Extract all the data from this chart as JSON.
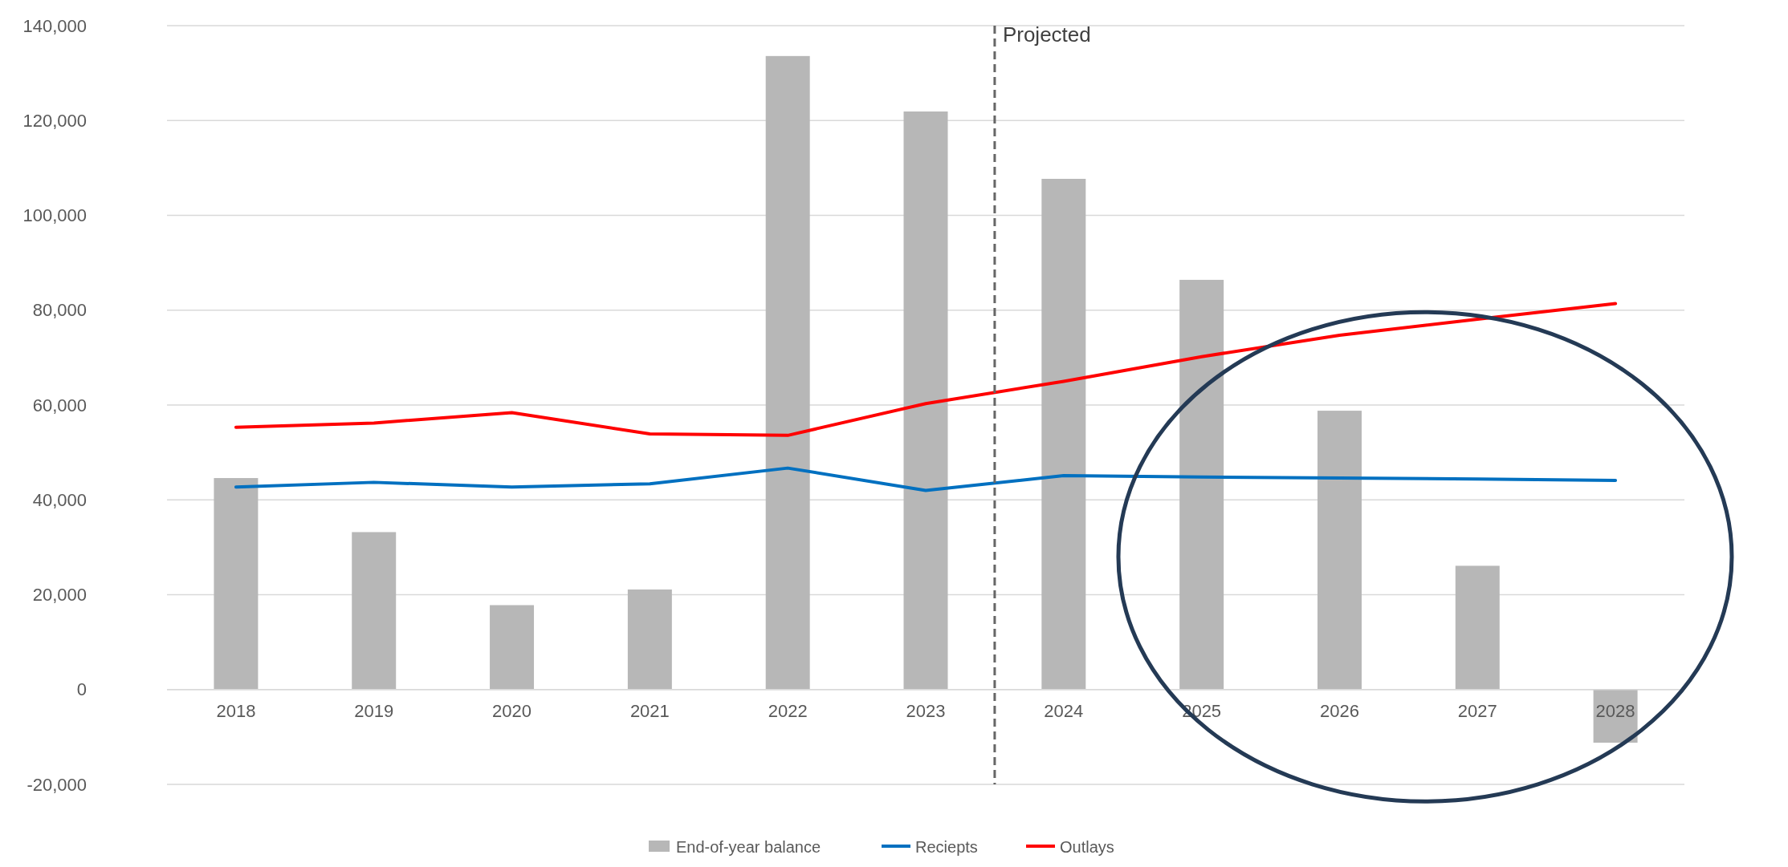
{
  "chart_data": {
    "type": "bar",
    "x": [
      2018,
      2019,
      2020,
      2021,
      2022,
      2023,
      2024,
      2025,
      2026,
      2027,
      2028
    ],
    "xlim": [
      2017.5,
      2028.5
    ],
    "xticks": [
      2018,
      2019,
      2020,
      2021,
      2022,
      2023,
      2024,
      2025,
      2026,
      2027,
      2028
    ],
    "ylim": [
      -20000,
      140000
    ],
    "yticks": [
      {
        "value": -20000,
        "label": "-20,000"
      },
      {
        "value": 0,
        "label": "0"
      },
      {
        "value": 20000,
        "label": "20,000"
      },
      {
        "value": 40000,
        "label": "40,000"
      },
      {
        "value": 60000,
        "label": "60,000"
      },
      {
        "value": 80000,
        "label": "80,000"
      },
      {
        "value": 100000,
        "label": "100,000"
      },
      {
        "value": 120000,
        "label": "120,000"
      },
      {
        "value": 140000,
        "label": "140,000"
      }
    ],
    "grid": "y",
    "legend": "bottom",
    "marker": "none",
    "line_style": "solid",
    "ref_lines": [
      {
        "axis": "x",
        "value": 2023.5,
        "label": "Projected",
        "color": "#666666",
        "line_style": "dashed"
      }
    ],
    "series": [
      {
        "name": "End-of-year balance",
        "color": "#b7b7b7",
        "values": [
          44600,
          33200,
          17800,
          21100,
          133600,
          121900,
          107700,
          86400,
          58800,
          26100,
          -11200
        ]
      },
      {
        "name": "Reciepts",
        "type": "line",
        "color": "#0070c0",
        "values": [
          42700,
          43700,
          42700,
          43400,
          46700,
          42000,
          45100,
          44800,
          44600,
          44400,
          44100
        ]
      },
      {
        "name": "Outlays",
        "type": "line",
        "color": "#ff0000",
        "values": [
          55300,
          56200,
          58400,
          53900,
          53600,
          60300,
          65000,
          70200,
          74700,
          78100,
          81400
        ]
      }
    ]
  }
}
